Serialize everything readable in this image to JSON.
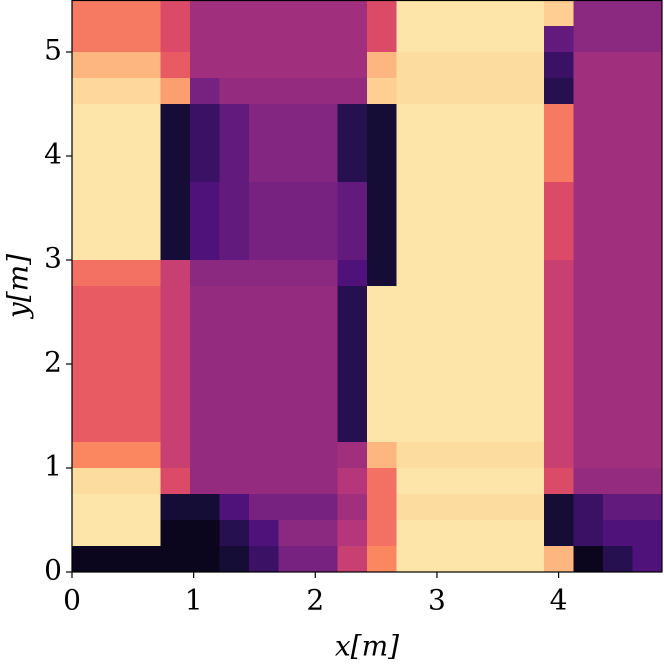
{
  "chart_data": {
    "type": "heatmap",
    "colormap": "magma",
    "xlabel": "x[m]",
    "ylabel": "y[m]",
    "xlim": [
      0,
      4.85
    ],
    "ylim": [
      0,
      5.5
    ],
    "xticks": [
      0,
      1,
      2,
      3,
      4
    ],
    "yticks": [
      0,
      1,
      2,
      3,
      4,
      5
    ],
    "values": [
      [
        0.72,
        0.72,
        0.72,
        0.6,
        0.45,
        0.45,
        0.45,
        0.45,
        0.45,
        0.45,
        0.6,
        0.95,
        0.95,
        0.95,
        0.95,
        0.95,
        0.9,
        0.4,
        0.4,
        0.4
      ],
      [
        0.72,
        0.72,
        0.72,
        0.6,
        0.45,
        0.45,
        0.45,
        0.45,
        0.45,
        0.45,
        0.6,
        0.95,
        0.95,
        0.95,
        0.95,
        0.95,
        0.3,
        0.4,
        0.4,
        0.4
      ],
      [
        0.85,
        0.85,
        0.85,
        0.65,
        0.45,
        0.45,
        0.45,
        0.45,
        0.45,
        0.45,
        0.85,
        0.93,
        0.93,
        0.93,
        0.93,
        0.93,
        0.2,
        0.45,
        0.45,
        0.45
      ],
      [
        0.92,
        0.92,
        0.92,
        0.8,
        0.35,
        0.42,
        0.42,
        0.42,
        0.42,
        0.42,
        0.9,
        0.93,
        0.93,
        0.93,
        0.93,
        0.93,
        0.15,
        0.45,
        0.45,
        0.45
      ],
      [
        0.95,
        0.95,
        0.95,
        0.1,
        0.2,
        0.3,
        0.38,
        0.38,
        0.38,
        0.15,
        0.1,
        0.95,
        0.95,
        0.95,
        0.95,
        0.95,
        0.72,
        0.45,
        0.45,
        0.45
      ],
      [
        0.95,
        0.95,
        0.95,
        0.1,
        0.2,
        0.3,
        0.38,
        0.38,
        0.38,
        0.15,
        0.1,
        0.95,
        0.95,
        0.95,
        0.95,
        0.95,
        0.72,
        0.45,
        0.45,
        0.45
      ],
      [
        0.95,
        0.95,
        0.95,
        0.1,
        0.2,
        0.3,
        0.38,
        0.38,
        0.38,
        0.15,
        0.1,
        0.95,
        0.95,
        0.95,
        0.95,
        0.95,
        0.72,
        0.45,
        0.45,
        0.45
      ],
      [
        0.95,
        0.95,
        0.95,
        0.1,
        0.25,
        0.3,
        0.35,
        0.35,
        0.35,
        0.3,
        0.1,
        0.95,
        0.95,
        0.95,
        0.95,
        0.95,
        0.6,
        0.45,
        0.45,
        0.45
      ],
      [
        0.95,
        0.95,
        0.95,
        0.1,
        0.25,
        0.3,
        0.35,
        0.35,
        0.35,
        0.3,
        0.1,
        0.95,
        0.95,
        0.95,
        0.95,
        0.95,
        0.6,
        0.45,
        0.45,
        0.45
      ],
      [
        0.95,
        0.95,
        0.95,
        0.1,
        0.25,
        0.3,
        0.35,
        0.35,
        0.35,
        0.3,
        0.1,
        0.95,
        0.95,
        0.95,
        0.95,
        0.95,
        0.6,
        0.45,
        0.45,
        0.45
      ],
      [
        0.7,
        0.7,
        0.7,
        0.55,
        0.4,
        0.4,
        0.4,
        0.4,
        0.4,
        0.25,
        0.1,
        0.95,
        0.95,
        0.95,
        0.95,
        0.95,
        0.55,
        0.45,
        0.45,
        0.45
      ],
      [
        0.65,
        0.65,
        0.65,
        0.55,
        0.42,
        0.42,
        0.42,
        0.42,
        0.42,
        0.15,
        0.95,
        0.95,
        0.95,
        0.95,
        0.95,
        0.95,
        0.55,
        0.45,
        0.45,
        0.45
      ],
      [
        0.65,
        0.65,
        0.65,
        0.55,
        0.42,
        0.42,
        0.42,
        0.42,
        0.42,
        0.15,
        0.95,
        0.95,
        0.95,
        0.95,
        0.95,
        0.95,
        0.55,
        0.45,
        0.45,
        0.45
      ],
      [
        0.65,
        0.65,
        0.65,
        0.55,
        0.42,
        0.42,
        0.42,
        0.42,
        0.42,
        0.15,
        0.95,
        0.95,
        0.95,
        0.95,
        0.95,
        0.95,
        0.55,
        0.45,
        0.45,
        0.45
      ],
      [
        0.65,
        0.65,
        0.65,
        0.55,
        0.42,
        0.42,
        0.42,
        0.42,
        0.42,
        0.15,
        0.95,
        0.95,
        0.95,
        0.95,
        0.95,
        0.95,
        0.55,
        0.45,
        0.45,
        0.45
      ],
      [
        0.65,
        0.65,
        0.65,
        0.55,
        0.42,
        0.42,
        0.42,
        0.42,
        0.42,
        0.15,
        0.95,
        0.95,
        0.95,
        0.95,
        0.95,
        0.95,
        0.55,
        0.45,
        0.45,
        0.45
      ],
      [
        0.65,
        0.65,
        0.65,
        0.55,
        0.42,
        0.42,
        0.42,
        0.42,
        0.42,
        0.15,
        0.95,
        0.95,
        0.95,
        0.95,
        0.95,
        0.95,
        0.55,
        0.45,
        0.45,
        0.45
      ],
      [
        0.75,
        0.75,
        0.75,
        0.55,
        0.42,
        0.42,
        0.42,
        0.42,
        0.42,
        0.45,
        0.85,
        0.93,
        0.93,
        0.93,
        0.93,
        0.93,
        0.55,
        0.45,
        0.45,
        0.45
      ],
      [
        0.93,
        0.93,
        0.93,
        0.6,
        0.42,
        0.42,
        0.42,
        0.42,
        0.42,
        0.5,
        0.7,
        0.95,
        0.95,
        0.95,
        0.95,
        0.95,
        0.6,
        0.42,
        0.42,
        0.42
      ],
      [
        0.95,
        0.95,
        0.95,
        0.1,
        0.1,
        0.25,
        0.35,
        0.35,
        0.35,
        0.45,
        0.7,
        0.93,
        0.93,
        0.93,
        0.93,
        0.93,
        0.1,
        0.2,
        0.3,
        0.3
      ],
      [
        0.95,
        0.95,
        0.95,
        0.05,
        0.05,
        0.15,
        0.25,
        0.4,
        0.4,
        0.5,
        0.7,
        0.95,
        0.95,
        0.95,
        0.95,
        0.95,
        0.1,
        0.2,
        0.25,
        0.25
      ],
      [
        0.05,
        0.05,
        0.05,
        0.05,
        0.05,
        0.1,
        0.2,
        0.35,
        0.35,
        0.55,
        0.75,
        0.95,
        0.95,
        0.95,
        0.95,
        0.95,
        0.85,
        0.05,
        0.15,
        0.25
      ]
    ]
  }
}
